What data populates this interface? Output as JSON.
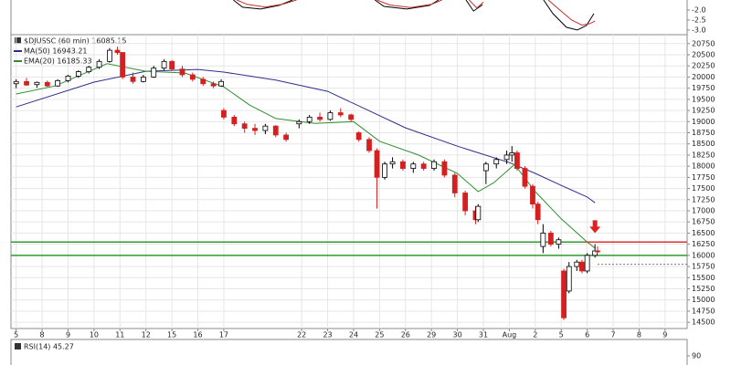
{
  "chart_data": {
    "type": "candlestick",
    "title": "$DJUSSC (60 min) 16085.15",
    "xlim": [
      -0.2,
      25.85
    ],
    "ylim": [
      14360,
      20950
    ],
    "xticks": [
      {
        "value": 0,
        "label": "5"
      },
      {
        "value": 1,
        "label": "8"
      },
      {
        "value": 2,
        "label": "9"
      },
      {
        "value": 3,
        "label": "10"
      },
      {
        "value": 4,
        "label": "11"
      },
      {
        "value": 5,
        "label": "12"
      },
      {
        "value": 6,
        "label": "15"
      },
      {
        "value": 7,
        "label": "16"
      },
      {
        "value": 8,
        "label": "17"
      },
      {
        "value": 11,
        "label": "22"
      },
      {
        "value": 12,
        "label": "23"
      },
      {
        "value": 13,
        "label": "24"
      },
      {
        "value": 14,
        "label": "25"
      },
      {
        "value": 15,
        "label": "26"
      },
      {
        "value": 16,
        "label": "29"
      },
      {
        "value": 17,
        "label": "30"
      },
      {
        "value": 18,
        "label": "31"
      },
      {
        "value": 19,
        "label": "Aug"
      },
      {
        "value": 20,
        "label": "2"
      },
      {
        "value": 21,
        "label": "5"
      },
      {
        "value": 22,
        "label": "6"
      },
      {
        "value": 23,
        "label": "7"
      },
      {
        "value": 24,
        "label": "8"
      },
      {
        "value": 25,
        "label": "9"
      }
    ],
    "yticks": [
      14500,
      14750,
      15000,
      15250,
      15500,
      15750,
      16000,
      16250,
      16500,
      16750,
      17000,
      17250,
      17500,
      17750,
      18000,
      18250,
      18500,
      18750,
      19000,
      19250,
      19500,
      19750,
      20000,
      20250,
      20500,
      20750
    ],
    "grid": true,
    "up_color": "#000000",
    "down_color": "#d42020",
    "candles": {
      "x": [
        0.0,
        0.4,
        0.8,
        1.2,
        1.6,
        2.0,
        2.4,
        2.8,
        3.2,
        3.6,
        3.9,
        4.1,
        4.5,
        4.9,
        5.3,
        5.7,
        6.0,
        6.4,
        6.8,
        7.2,
        7.6,
        7.9,
        8.0,
        8.4,
        8.8,
        9.2,
        9.6,
        10.0,
        10.4,
        10.9,
        11.3,
        11.7,
        12.1,
        12.5,
        12.9,
        13.2,
        13.6,
        13.9,
        14.2,
        14.5,
        14.9,
        15.3,
        15.7,
        16.1,
        16.5,
        16.9,
        17.3,
        17.7,
        17.8,
        18.1,
        18.5,
        18.9,
        19.1,
        19.3,
        19.6,
        19.9,
        20.1,
        20.3,
        20.6,
        20.9,
        21.1,
        21.3,
        21.6,
        21.8,
        22.0,
        22.3,
        22.4
      ],
      "open": [
        19850,
        19900,
        19830,
        19880,
        19800,
        19920,
        20020,
        20120,
        20220,
        20350,
        20600,
        20550,
        20000,
        19900,
        20000,
        20200,
        20350,
        20180,
        20050,
        19950,
        19850,
        19800,
        19250,
        19100,
        18950,
        18850,
        18800,
        18900,
        18700,
        18950,
        19000,
        19100,
        19050,
        19200,
        19150,
        18750,
        18600,
        18350,
        17750,
        18050,
        18100,
        17950,
        18050,
        17950,
        18100,
        17800,
        17400,
        17000,
        16800,
        17900,
        18050,
        18150,
        18250,
        18300,
        17950,
        17550,
        17150,
        16200,
        16500,
        16250,
        15650,
        15200,
        15750,
        15850,
        15650,
        16000,
        16100
      ],
      "high": [
        19950,
        19980,
        19900,
        19920,
        19950,
        20050,
        20150,
        20250,
        20400,
        20650,
        20680,
        20560,
        20100,
        20050,
        20250,
        20400,
        20380,
        20250,
        20100,
        20000,
        19900,
        19950,
        19300,
        19150,
        19000,
        18950,
        18950,
        18920,
        18750,
        19050,
        19150,
        19200,
        19250,
        19300,
        19180,
        18780,
        18650,
        18400,
        18100,
        18200,
        18150,
        18100,
        18100,
        18150,
        18150,
        17850,
        17450,
        17100,
        17150,
        18100,
        18200,
        18350,
        18450,
        18350,
        18000,
        17600,
        17200,
        16700,
        16550,
        16400,
        15700,
        15850,
        15900,
        15900,
        16050,
        16250,
        16200
      ],
      "low": [
        19750,
        19800,
        19760,
        19780,
        19780,
        19880,
        19980,
        20080,
        20180,
        20320,
        20500,
        19950,
        19850,
        19880,
        19980,
        20150,
        20150,
        20000,
        19900,
        19800,
        19750,
        19780,
        19050,
        18900,
        18750,
        18700,
        18720,
        18650,
        18550,
        18850,
        18950,
        19000,
        19020,
        19100,
        19000,
        18550,
        18300,
        17050,
        17700,
        17950,
        17900,
        17850,
        17900,
        17900,
        17750,
        17300,
        16900,
        16700,
        16750,
        17600,
        17950,
        18050,
        18100,
        17900,
        17500,
        17050,
        16700,
        16050,
        16200,
        16150,
        14550,
        15150,
        15650,
        15600,
        15600,
        15950,
        16050
      ],
      "close": [
        19900,
        19820,
        19880,
        19800,
        19920,
        20020,
        20120,
        20220,
        20350,
        20600,
        20550,
        20000,
        19900,
        20000,
        20200,
        20350,
        20180,
        20050,
        19950,
        19850,
        19800,
        19900,
        19100,
        18950,
        18850,
        18800,
        18900,
        18700,
        18600,
        19000,
        19100,
        19050,
        19200,
        19150,
        19050,
        18600,
        18350,
        17750,
        18050,
        18100,
        17950,
        18050,
        17950,
        18100,
        17800,
        17400,
        17000,
        16800,
        17100,
        18050,
        18150,
        18250,
        18300,
        17950,
        17550,
        17150,
        16800,
        16500,
        16250,
        16350,
        14600,
        15750,
        15850,
        15650,
        16000,
        16100,
        16085.15
      ]
    },
    "series": [
      {
        "name": "MA(50) 16943.21",
        "color": "#2e2e8a",
        "x": [
          0,
          3,
          5,
          7,
          8,
          10,
          12,
          13.5,
          15,
          17,
          19,
          20,
          21,
          22,
          22.3
        ],
        "values": [
          19330,
          19885,
          20130,
          20170,
          20110,
          19930,
          19680,
          19270,
          18860,
          18450,
          18080,
          17840,
          17570,
          17310,
          17180
        ]
      },
      {
        "name": "EMA(20) 16185.33",
        "color": "#2f8f2f",
        "x": [
          0,
          1.5,
          3.5,
          5,
          6.5,
          8,
          9,
          10,
          11.5,
          13,
          14,
          15.5,
          17,
          17.8,
          18.4,
          19.2,
          20,
          21,
          22,
          22.3
        ],
        "values": [
          19620,
          19800,
          20300,
          20130,
          20090,
          19780,
          19370,
          19070,
          18960,
          19000,
          18560,
          18250,
          17840,
          17430,
          17630,
          18040,
          17430,
          16820,
          16300,
          16160
        ]
      }
    ],
    "hlines": [
      {
        "value": 16300,
        "color": "#2f9a2f"
      },
      {
        "value": 16000,
        "color": "#2f9a2f"
      }
    ],
    "red_line": {
      "value": 16300,
      "from": 21.9,
      "color": "#e03030"
    },
    "dotted_line": {
      "value": 15800,
      "from": 22.4,
      "color": "#777777"
    },
    "arrow": {
      "x": 22.3,
      "value": 16500,
      "color": "#e02020"
    },
    "top_panel": {
      "ylim": [
        -3.23,
        -1.5
      ],
      "yticks": [
        {
          "value": -2,
          "label": "-2.0"
        },
        -2.5,
        {
          "value": -3,
          "label": "-3.0"
        }
      ],
      "series": [
        {
          "color": "#000000",
          "x": [
            8.37,
            8.72,
            9.42,
            10.13,
            10.65,
            null,
            13.82,
            14.17,
            15.05,
            15.93,
            16.28,
            null,
            17.33,
            17.62,
            17.97,
            null,
            20.32,
            20.68,
            21.2,
            21.62,
            21.97,
            22.26
          ],
          "values": [
            -1.5,
            -1.86,
            -1.95,
            -1.77,
            -1.5,
            null,
            -1.5,
            -1.82,
            -1.95,
            -1.77,
            -1.5,
            null,
            -1.5,
            -2.05,
            -1.73,
            null,
            -1.5,
            -2.18,
            -2.86,
            -3.0,
            -2.77,
            -2.18
          ]
        },
        {
          "color": "#c03030",
          "x": [
            8.5,
            8.9,
            9.6,
            10.3,
            10.8,
            null,
            13.9,
            14.4,
            15.2,
            16.0,
            16.4,
            null,
            17.45,
            17.75,
            18.0,
            null,
            20.5,
            20.9,
            21.4,
            21.8,
            22.1,
            22.3
          ],
          "values": [
            -1.5,
            -1.72,
            -1.85,
            -1.7,
            -1.5,
            null,
            -1.5,
            -1.75,
            -1.88,
            -1.72,
            -1.5,
            null,
            -1.5,
            -1.9,
            -1.6,
            null,
            -1.5,
            -1.95,
            -2.5,
            -2.75,
            -2.68,
            -2.55
          ]
        }
      ]
    },
    "rsi_panel": {
      "label": "RSI(14) 45.27",
      "ylim": [
        0,
        100
      ],
      "yticks": [
        90
      ]
    }
  }
}
